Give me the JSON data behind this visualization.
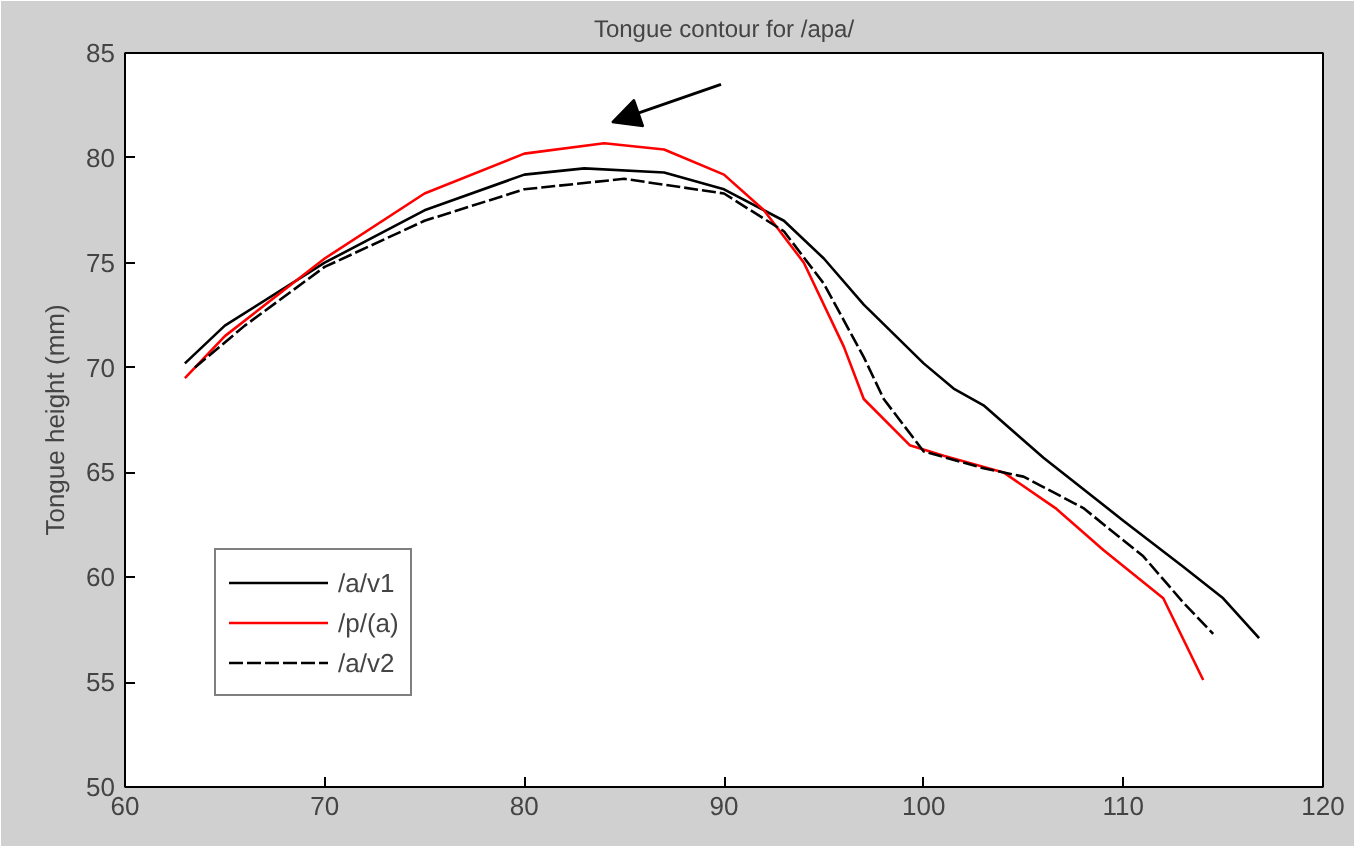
{
  "chart_data": {
    "type": "line",
    "title": "Tongue contour for /apa/",
    "ylabel": "Tongue height (mm)",
    "xlim": [
      60,
      120
    ],
    "ylim": [
      50,
      85
    ],
    "xticks": [
      60,
      70,
      80,
      90,
      100,
      110,
      120
    ],
    "yticks": [
      50,
      55,
      60,
      65,
      70,
      75,
      80,
      85
    ],
    "grid": false,
    "legend": "bottom left",
    "series": [
      {
        "name": "/a/v1",
        "color": "#000000",
        "line_style": "solid",
        "x": [
          63,
          65,
          70,
          75,
          80,
          83,
          87,
          90,
          93,
          95,
          97,
          100,
          101.5,
          103,
          106,
          110,
          113,
          115,
          116.8
        ],
        "values": [
          70.2,
          72,
          75,
          77.5,
          79.2,
          79.5,
          79.3,
          78.5,
          77,
          75.2,
          73,
          70.2,
          69,
          68.2,
          65.7,
          62.7,
          60.5,
          59,
          57.1
        ]
      },
      {
        "name": "/p/(a)",
        "color": "#ff0000",
        "line_style": "solid",
        "x": [
          63,
          65,
          70,
          75,
          80,
          84,
          87,
          90,
          92,
          94,
          96,
          97,
          99.3,
          101,
          104,
          106.6,
          109,
          112,
          114
        ],
        "values": [
          69.5,
          71.5,
          75.2,
          78.3,
          80.2,
          80.7,
          80.4,
          79.2,
          77.5,
          75,
          71,
          68.5,
          66.3,
          65.8,
          65,
          63.3,
          61.3,
          59,
          55.1
        ]
      },
      {
        "name": "/a/v2",
        "color": "#000000",
        "line_style": "dashed",
        "x": [
          63.5,
          66,
          70,
          75,
          80,
          85,
          90,
          93,
          95,
          97,
          98,
          100,
          103,
          105,
          108,
          111,
          113,
          114.5
        ],
        "values": [
          70,
          72,
          74.8,
          77,
          78.5,
          79,
          78.3,
          76.5,
          74,
          70.5,
          68.5,
          66,
          65.2,
          64.8,
          63.3,
          61,
          58.8,
          57.3
        ]
      }
    ]
  }
}
